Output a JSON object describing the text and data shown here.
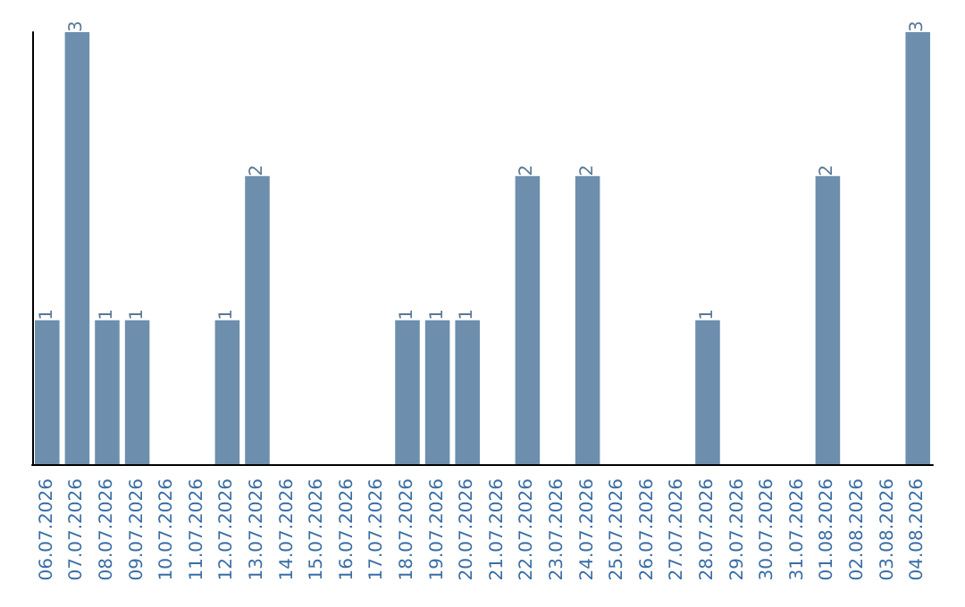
{
  "chart_data": {
    "type": "bar",
    "categories": [
      "06.07.2026",
      "07.07.2026",
      "08.07.2026",
      "09.07.2026",
      "10.07.2026",
      "11.07.2026",
      "12.07.2026",
      "13.07.2026",
      "14.07.2026",
      "15.07.2026",
      "16.07.2026",
      "17.07.2026",
      "18.07.2026",
      "19.07.2026",
      "20.07.2026",
      "21.07.2026",
      "22.07.2026",
      "23.07.2026",
      "24.07.2026",
      "25.07.2026",
      "26.07.2026",
      "27.07.2026",
      "28.07.2026",
      "29.07.2026",
      "30.07.2026",
      "31.07.2026",
      "01.08.2026",
      "02.08.2026",
      "03.08.2026",
      "04.08.2026"
    ],
    "values": [
      1,
      3,
      1,
      1,
      0,
      0,
      1,
      2,
      0,
      0,
      0,
      0,
      1,
      1,
      1,
      0,
      2,
      0,
      2,
      0,
      0,
      0,
      1,
      0,
      0,
      0,
      2,
      0,
      0,
      3
    ],
    "value_labels": [
      "1",
      "3",
      "1",
      "1",
      null,
      null,
      "1",
      "2",
      null,
      null,
      null,
      null,
      "1",
      "1",
      "1",
      null,
      "2",
      null,
      "2",
      null,
      null,
      null,
      "1",
      null,
      null,
      null,
      "2",
      null,
      null,
      "3"
    ],
    "color": "#6d8fad",
    "tick_labels": "x"
  }
}
